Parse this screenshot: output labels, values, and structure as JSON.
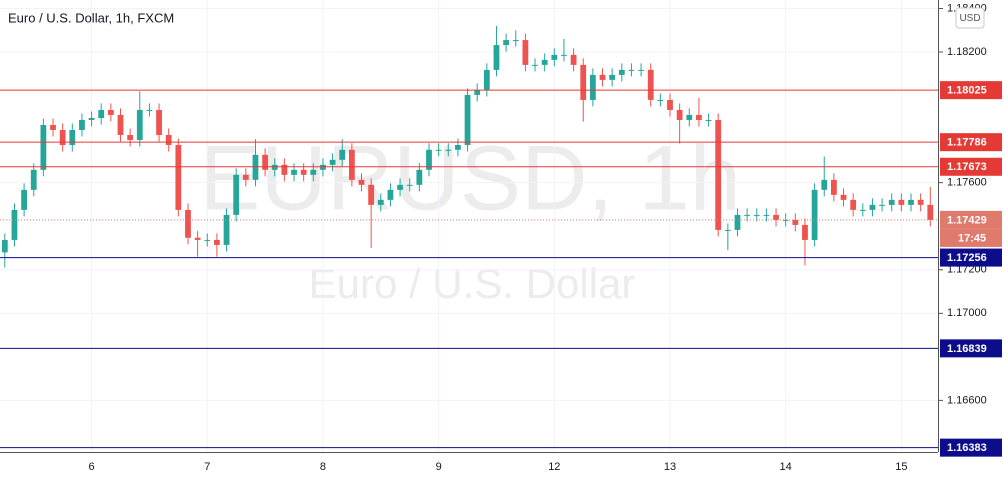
{
  "chart_data": {
    "type": "candlestick",
    "title": "Euro / U.S. Dollar, 1h, FXCM",
    "watermark": "EURUSD, 1h",
    "watermark_subtitle": "Euro / U.S. Dollar",
    "currency": "USD",
    "up_color": "#26a69a",
    "down_color": "#ef5350",
    "x": [
      0,
      1,
      2,
      3,
      4,
      5,
      6,
      7,
      8,
      9,
      10,
      11,
      12,
      13,
      14,
      15,
      16,
      17,
      18,
      19,
      20,
      21,
      22,
      23,
      24,
      25,
      26,
      27,
      28,
      29,
      30,
      31,
      32,
      33,
      34,
      35,
      36,
      37,
      38,
      39,
      40,
      41,
      42,
      43,
      44,
      45,
      46,
      47,
      48,
      49,
      50,
      51,
      52,
      53,
      54,
      55,
      56,
      57,
      58,
      59,
      60,
      61,
      62,
      63,
      64,
      65,
      66,
      67,
      68,
      69,
      70,
      71,
      72,
      73,
      74,
      75,
      76,
      77,
      78,
      79,
      80,
      81,
      82,
      83,
      84,
      85,
      86,
      87,
      88,
      89,
      90,
      91,
      92,
      93,
      94,
      95,
      96
    ],
    "open": [
      1.1728,
      1.17337,
      1.17475,
      1.17567,
      1.17659,
      1.17865,
      1.17842,
      1.17773,
      1.17842,
      1.17888,
      1.17897,
      1.17934,
      1.17911,
      1.17819,
      1.17796,
      1.17934,
      1.17934,
      1.17819,
      1.17773,
      1.17475,
      1.17347,
      1.17337,
      1.17337,
      1.17314,
      1.17452,
      1.17636,
      1.17613,
      1.17728,
      1.17659,
      1.17682,
      1.17636,
      1.17659,
      1.17636,
      1.17659,
      1.17682,
      1.17705,
      1.17751,
      1.17613,
      1.1759,
      1.17498,
      1.17521,
      1.17567,
      1.1759,
      1.1759,
      1.17659,
      1.17751,
      1.17751,
      1.17751,
      1.17773,
      1.18003,
      1.18026,
      1.18118,
      1.18232,
      1.18255,
      1.18255,
      1.18141,
      1.18141,
      1.18164,
      1.18187,
      1.18187,
      1.18141,
      1.1798,
      1.18095,
      1.18072,
      1.18095,
      1.18118,
      1.18118,
      1.18118,
      1.1798,
      1.1798,
      1.17934,
      1.17888,
      1.17911,
      1.17888,
      1.17888,
      1.17383,
      1.17383,
      1.17452,
      1.17452,
      1.17452,
      1.17452,
      1.17429,
      1.17429,
      1.17406,
      1.17337,
      1.17567,
      1.17613,
      1.17544,
      1.17521,
      1.17475,
      1.17475,
      1.17498,
      1.17498,
      1.17521,
      1.17498,
      1.17521,
      1.17498
    ],
    "high": [
      1.17367,
      1.17505,
      1.17597,
      1.17689,
      1.17895,
      1.17895,
      1.17872,
      1.17872,
      1.17918,
      1.17927,
      1.17964,
      1.17964,
      1.17941,
      1.17849,
      1.1802,
      1.17964,
      1.17964,
      1.17849,
      1.17803,
      1.17505,
      1.17377,
      1.17367,
      1.17367,
      1.17482,
      1.17666,
      1.17666,
      1.178,
      1.17758,
      1.17712,
      1.17712,
      1.17689,
      1.17689,
      1.17689,
      1.17712,
      1.17735,
      1.178,
      1.17781,
      1.17643,
      1.1762,
      1.17551,
      1.17597,
      1.1762,
      1.1762,
      1.17689,
      1.17781,
      1.17781,
      1.17781,
      1.17803,
      1.18033,
      1.18056,
      1.18148,
      1.1832,
      1.18285,
      1.183,
      1.18285,
      1.18171,
      1.18194,
      1.18217,
      1.1826,
      1.18217,
      1.18171,
      1.18125,
      1.18125,
      1.18125,
      1.18148,
      1.18148,
      1.18148,
      1.18148,
      1.1801,
      1.1801,
      1.17964,
      1.17941,
      1.1799,
      1.17918,
      1.17918,
      1.17413,
      1.17482,
      1.17482,
      1.17482,
      1.17482,
      1.17482,
      1.17459,
      1.17459,
      1.17436,
      1.17597,
      1.1772,
      1.17643,
      1.17574,
      1.17551,
      1.17505,
      1.17528,
      1.17528,
      1.17551,
      1.17551,
      1.17551,
      1.17551,
      1.1758
    ],
    "low": [
      1.1721,
      1.17307,
      1.17445,
      1.17537,
      1.17629,
      1.17812,
      1.17743,
      1.17743,
      1.17812,
      1.17858,
      1.17867,
      1.17881,
      1.17789,
      1.17766,
      1.17766,
      1.17904,
      1.17789,
      1.17743,
      1.17445,
      1.17317,
      1.1726,
      1.17307,
      1.1726,
      1.17284,
      1.17422,
      1.17583,
      1.17583,
      1.17629,
      1.17629,
      1.17606,
      1.17606,
      1.17606,
      1.17606,
      1.17629,
      1.17652,
      1.17675,
      1.17583,
      1.1756,
      1.173,
      1.17468,
      1.17491,
      1.17537,
      1.1756,
      1.1756,
      1.17629,
      1.17721,
      1.17721,
      1.17721,
      1.17743,
      1.17973,
      1.17996,
      1.18088,
      1.18202,
      1.18225,
      1.18111,
      1.18111,
      1.18111,
      1.18134,
      1.18157,
      1.18111,
      1.1788,
      1.1795,
      1.18042,
      1.18042,
      1.18065,
      1.18088,
      1.18088,
      1.1795,
      1.1795,
      1.17904,
      1.1778,
      1.17858,
      1.17858,
      1.17858,
      1.17353,
      1.1729,
      1.17353,
      1.17422,
      1.17422,
      1.17422,
      1.17399,
      1.17399,
      1.17376,
      1.1722,
      1.17307,
      1.17537,
      1.17514,
      1.17491,
      1.17445,
      1.17445,
      1.17445,
      1.17468,
      1.17468,
      1.17468,
      1.17468,
      1.17468,
      1.17399
    ],
    "close": [
      1.17337,
      1.17475,
      1.17567,
      1.17659,
      1.17865,
      1.17842,
      1.17773,
      1.17842,
      1.17888,
      1.17897,
      1.17934,
      1.17911,
      1.17819,
      1.17796,
      1.17934,
      1.17934,
      1.17819,
      1.17773,
      1.17475,
      1.17347,
      1.17337,
      1.17337,
      1.17314,
      1.17452,
      1.17636,
      1.17613,
      1.17728,
      1.17659,
      1.17682,
      1.17636,
      1.17659,
      1.17636,
      1.17659,
      1.17682,
      1.17705,
      1.17751,
      1.17613,
      1.1759,
      1.17498,
      1.17521,
      1.17567,
      1.1759,
      1.1759,
      1.17659,
      1.17751,
      1.17751,
      1.17751,
      1.17773,
      1.18003,
      1.18026,
      1.18118,
      1.18232,
      1.18255,
      1.18255,
      1.18141,
      1.18141,
      1.18164,
      1.18187,
      1.18187,
      1.18141,
      1.1798,
      1.18095,
      1.18072,
      1.18095,
      1.18118,
      1.18118,
      1.18118,
      1.1798,
      1.1798,
      1.17934,
      1.17888,
      1.17911,
      1.17888,
      1.17888,
      1.17383,
      1.17383,
      1.17452,
      1.17452,
      1.17452,
      1.17452,
      1.17429,
      1.17429,
      1.17406,
      1.17337,
      1.17567,
      1.17613,
      1.17544,
      1.17521,
      1.17475,
      1.17475,
      1.17498,
      1.17498,
      1.17521,
      1.17498,
      1.17521,
      1.17498,
      1.17429
    ],
    "xlim": [
      -0.5,
      96.8
    ],
    "ylim": [
      1.16363,
      1.18439
    ],
    "xticks": [
      {
        "value": 9,
        "label": "6"
      },
      {
        "value": 21,
        "label": "7"
      },
      {
        "value": 33,
        "label": "8"
      },
      {
        "value": 45,
        "label": "9"
      },
      {
        "value": 57,
        "label": "12"
      },
      {
        "value": 69,
        "label": "13"
      },
      {
        "value": 81,
        "label": "14"
      },
      {
        "value": 93,
        "label": "15"
      }
    ],
    "yticks": [
      {
        "value": 1.184,
        "label": "1.18400"
      },
      {
        "value": 1.182,
        "label": "1.18200"
      },
      {
        "value": 1.176,
        "label": "1.17600"
      },
      {
        "value": 1.172,
        "label": "1.17200"
      },
      {
        "value": 1.17,
        "label": "1.17000"
      },
      {
        "value": 1.166,
        "label": "1.16600"
      }
    ],
    "grid": true,
    "levels": [
      {
        "value": 1.18025,
        "color": "#e53935"
      },
      {
        "value": 1.17786,
        "color": "#e53935"
      },
      {
        "value": 1.17673,
        "color": "#e53935"
      },
      {
        "value": 1.17256,
        "color": "#0d0d8c"
      },
      {
        "value": 1.16839,
        "color": "#0d0d8c"
      },
      {
        "value": 1.16383,
        "color": "#0d0d8c"
      }
    ],
    "last": {
      "value": 1.17429,
      "countdown": "17:45",
      "color": "#e07a6c"
    }
  }
}
